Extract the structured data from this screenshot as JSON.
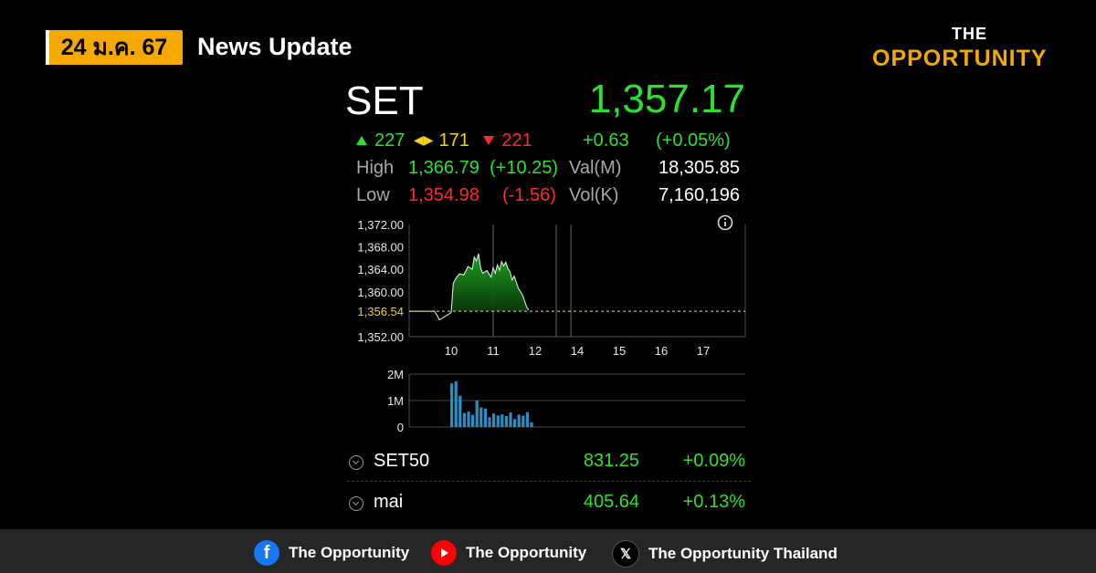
{
  "header": {
    "date": "24 ม.ค. 67",
    "title": "News Update"
  },
  "brand": {
    "line1": "THE",
    "line2": "OPPORTUNITY"
  },
  "quote": {
    "name": "SET",
    "price": "1,357.17",
    "advances": "227",
    "unchanged": "171",
    "declines": "221",
    "change": "+0.63",
    "change_pct": "(+0.05%)",
    "high_label": "High",
    "high": "1,366.79",
    "high_chg": "(+10.25)",
    "low_label": "Low",
    "low": "1,354.98",
    "low_chg": "(-1.56)",
    "val_label": "Val(M)",
    "val": "18,305.85",
    "vol_label": "Vol(K)",
    "vol": "7,160,196"
  },
  "chart_data": [
    {
      "type": "area",
      "x_ticks": [
        "10",
        "11",
        "12",
        "14",
        "15",
        "16",
        "17"
      ],
      "y_ticks": [
        "1,372.00",
        "1,368.00",
        "1,364.00",
        "1,360.00",
        "1,356.54",
        "1,352.00"
      ],
      "ylim": [
        1352,
        1372
      ],
      "xlim": [
        9.0,
        17.0
      ],
      "prev_close": 1356.54,
      "x": [
        9.0,
        9.6,
        9.68,
        9.72,
        10.0,
        10.05,
        10.12,
        10.2,
        10.3,
        10.4,
        10.5,
        10.55,
        10.6,
        10.65,
        10.7,
        10.75,
        10.85,
        10.95,
        11.0,
        11.05,
        11.1,
        11.15,
        11.2,
        11.25,
        11.3,
        11.35,
        11.4,
        11.45,
        11.5,
        11.6,
        11.7,
        11.8,
        11.85
      ],
      "y": [
        1356.54,
        1356.54,
        1355.6,
        1354.98,
        1356.3,
        1361.5,
        1362.5,
        1363.2,
        1363.0,
        1364.5,
        1364.0,
        1366.2,
        1365.5,
        1366.79,
        1364.3,
        1363.3,
        1363.8,
        1362.6,
        1364.3,
        1363.3,
        1364.8,
        1363.8,
        1365.4,
        1364.6,
        1365.3,
        1364.1,
        1363.6,
        1362.1,
        1362.8,
        1360.6,
        1359.4,
        1357.2,
        1356.8
      ]
    },
    {
      "type": "bar",
      "y_ticks": [
        "2M",
        "1M",
        "0"
      ],
      "ylim": [
        0,
        2000000
      ],
      "x": [
        10.0,
        10.1,
        10.2,
        10.3,
        10.4,
        10.5,
        10.6,
        10.7,
        10.8,
        10.9,
        11.0,
        11.1,
        11.2,
        11.3,
        11.4,
        11.5,
        11.6,
        11.7,
        11.8,
        11.9
      ],
      "values": [
        1650000,
        1720000,
        1180000,
        530000,
        590000,
        460000,
        1000000,
        740000,
        700000,
        370000,
        510000,
        440000,
        480000,
        420000,
        550000,
        300000,
        470000,
        430000,
        560000,
        180000
      ]
    }
  ],
  "indices": [
    {
      "name": "SET50",
      "value": "831.25",
      "change": "+0.09%"
    },
    {
      "name": "mai",
      "value": "405.64",
      "change": "+0.13%"
    }
  ],
  "footer": {
    "facebook": "The Opportunity",
    "youtube": "The Opportunity",
    "x": "The Opportunity Thailand"
  },
  "colors": {
    "up": "#2ee02e",
    "down": "#ff2a2a",
    "unchanged": "#f2d21b",
    "accent": "#f5a800",
    "volume": "#2a8fc0"
  }
}
